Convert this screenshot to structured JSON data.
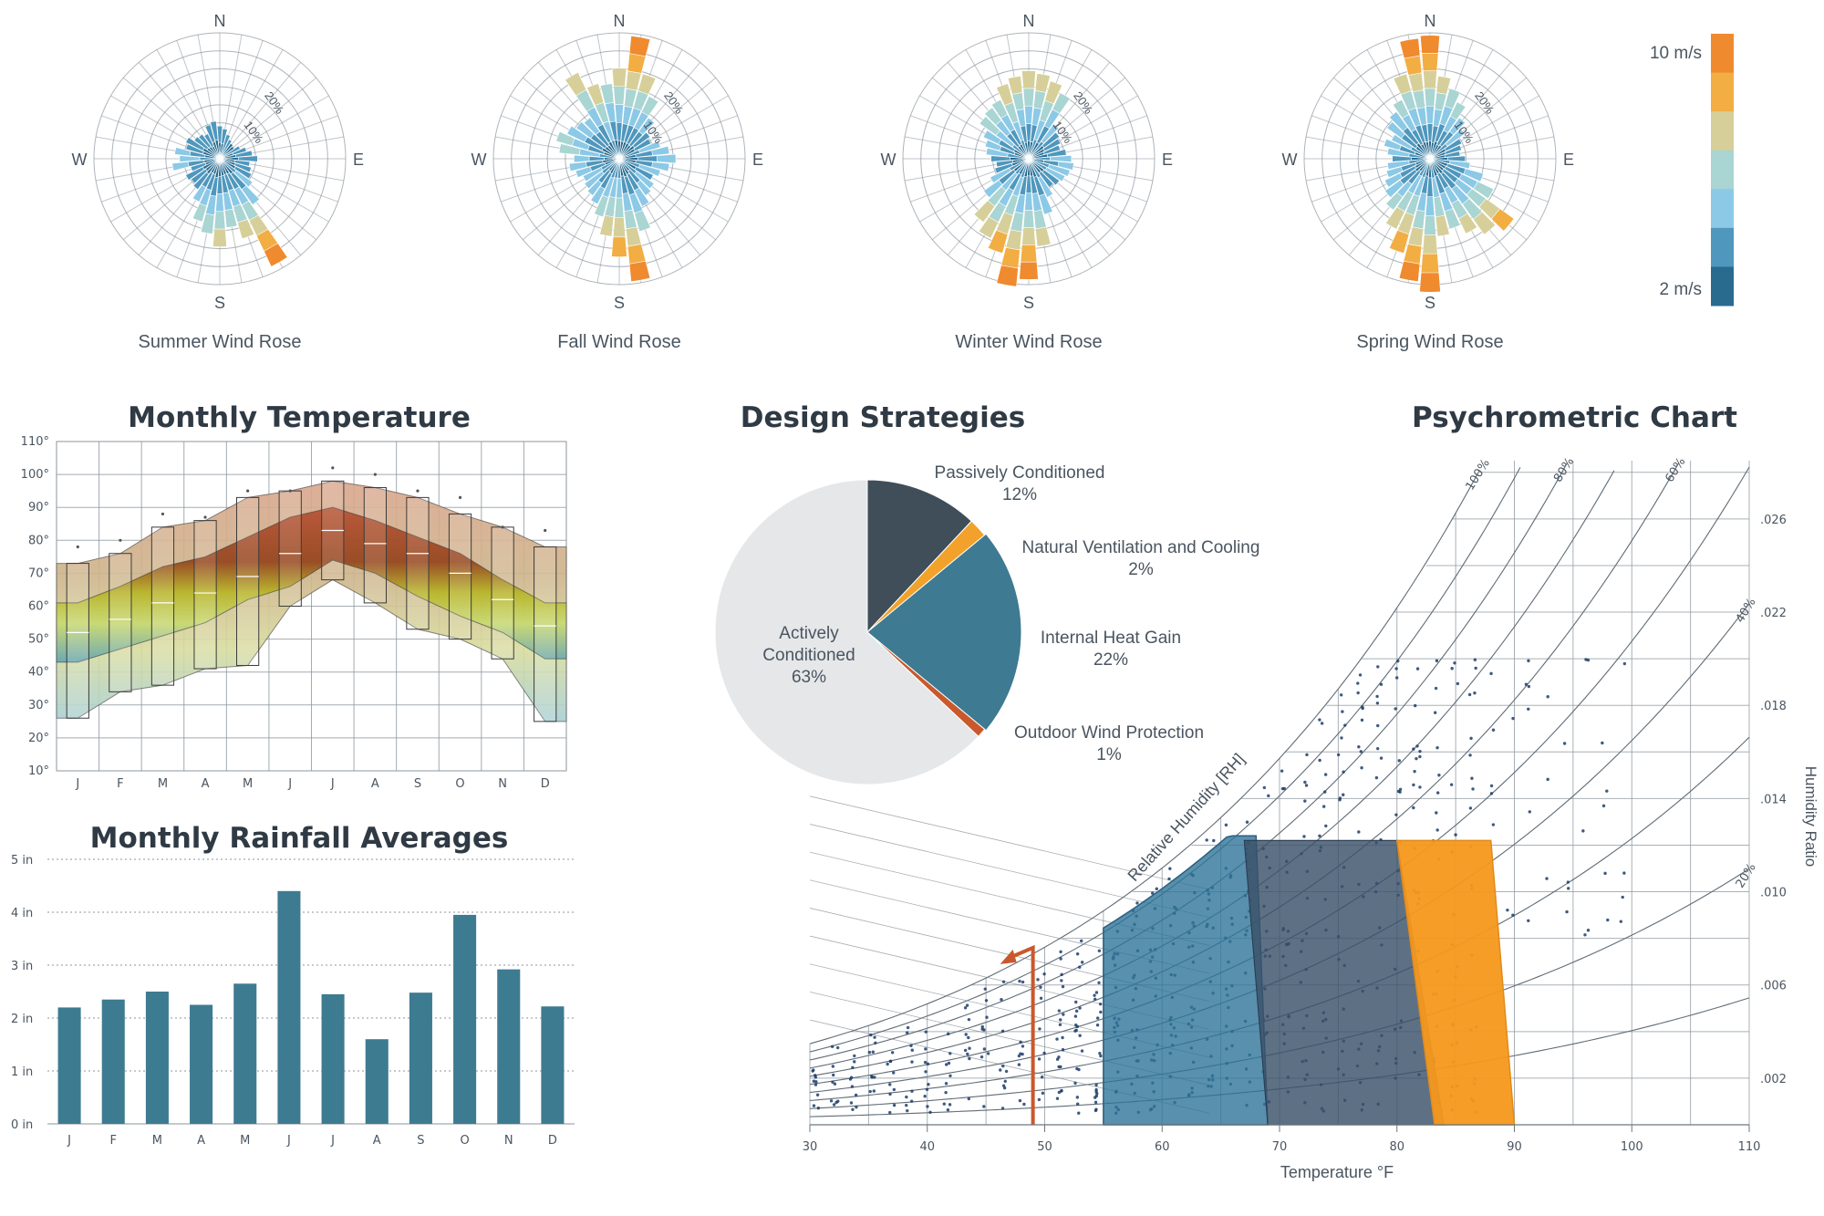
{
  "chart_data": [
    {
      "type": "wind-rose",
      "title": "Summer Wind Rose",
      "directions": [
        "N",
        "E",
        "S",
        "W"
      ],
      "ring_labels": [
        "10%",
        "20%"
      ],
      "petals": [
        {
          "dir": 0,
          "len": 0.26
        },
        {
          "dir": 10,
          "len": 0.24
        },
        {
          "dir": 20,
          "len": 0.2
        },
        {
          "dir": 30,
          "len": 0.17
        },
        {
          "dir": 40,
          "len": 0.15
        },
        {
          "dir": 50,
          "len": 0.14
        },
        {
          "dir": 60,
          "len": 0.18
        },
        {
          "dir": 70,
          "len": 0.22
        },
        {
          "dir": 80,
          "len": 0.26
        },
        {
          "dir": 90,
          "len": 0.3
        },
        {
          "dir": 100,
          "len": 0.24
        },
        {
          "dir": 110,
          "len": 0.26
        },
        {
          "dir": 120,
          "len": 0.28
        },
        {
          "dir": 130,
          "len": 0.32
        },
        {
          "dir": 140,
          "len": 0.45
        },
        {
          "dir": 150,
          "len": 0.95
        },
        {
          "dir": 160,
          "len": 0.66
        },
        {
          "dir": 170,
          "len": 0.55
        },
        {
          "dir": 180,
          "len": 0.7
        },
        {
          "dir": 190,
          "len": 0.6
        },
        {
          "dir": 200,
          "len": 0.52
        },
        {
          "dir": 210,
          "len": 0.38
        },
        {
          "dir": 220,
          "len": 0.3
        },
        {
          "dir": 230,
          "len": 0.28
        },
        {
          "dir": 240,
          "len": 0.3
        },
        {
          "dir": 250,
          "len": 0.24
        },
        {
          "dir": 260,
          "len": 0.38
        },
        {
          "dir": 270,
          "len": 0.32
        },
        {
          "dir": 280,
          "len": 0.36
        },
        {
          "dir": 290,
          "len": 0.28
        },
        {
          "dir": 300,
          "len": 0.3
        },
        {
          "dir": 310,
          "len": 0.25
        },
        {
          "dir": 320,
          "len": 0.24
        },
        {
          "dir": 330,
          "len": 0.22
        },
        {
          "dir": 340,
          "len": 0.28
        },
        {
          "dir": 350,
          "len": 0.3
        }
      ]
    },
    {
      "type": "wind-rose",
      "title": "Fall Wind Rose",
      "directions": [
        "N",
        "E",
        "S",
        "W"
      ],
      "ring_labels": [
        "10%",
        "20%"
      ],
      "petals": [
        {
          "dir": 0,
          "len": 0.72
        },
        {
          "dir": 10,
          "len": 0.98
        },
        {
          "dir": 20,
          "len": 0.7
        },
        {
          "dir": 30,
          "len": 0.55
        },
        {
          "dir": 40,
          "len": 0.4
        },
        {
          "dir": 50,
          "len": 0.3
        },
        {
          "dir": 60,
          "len": 0.28
        },
        {
          "dir": 70,
          "len": 0.34
        },
        {
          "dir": 80,
          "len": 0.4
        },
        {
          "dir": 90,
          "len": 0.45
        },
        {
          "dir": 100,
          "len": 0.4
        },
        {
          "dir": 110,
          "len": 0.34
        },
        {
          "dir": 120,
          "len": 0.3
        },
        {
          "dir": 130,
          "len": 0.34
        },
        {
          "dir": 140,
          "len": 0.36
        },
        {
          "dir": 150,
          "len": 0.42
        },
        {
          "dir": 160,
          "len": 0.6
        },
        {
          "dir": 170,
          "len": 0.98
        },
        {
          "dir": 180,
          "len": 0.78
        },
        {
          "dir": 190,
          "len": 0.62
        },
        {
          "dir": 200,
          "len": 0.48
        },
        {
          "dir": 210,
          "len": 0.4
        },
        {
          "dir": 220,
          "len": 0.36
        },
        {
          "dir": 230,
          "len": 0.34
        },
        {
          "dir": 240,
          "len": 0.32
        },
        {
          "dir": 250,
          "len": 0.36
        },
        {
          "dir": 260,
          "len": 0.4
        },
        {
          "dir": 270,
          "len": 0.36
        },
        {
          "dir": 280,
          "len": 0.48
        },
        {
          "dir": 290,
          "len": 0.52
        },
        {
          "dir": 300,
          "len": 0.46
        },
        {
          "dir": 310,
          "len": 0.42
        },
        {
          "dir": 320,
          "len": 0.4
        },
        {
          "dir": 330,
          "len": 0.76
        },
        {
          "dir": 340,
          "len": 0.62
        },
        {
          "dir": 350,
          "len": 0.6
        }
      ]
    },
    {
      "type": "wind-rose",
      "title": "Winter Wind Rose",
      "directions": [
        "N",
        "E",
        "S",
        "W"
      ],
      "ring_labels": [
        "10%",
        "20%"
      ],
      "petals": [
        {
          "dir": 0,
          "len": 0.7
        },
        {
          "dir": 10,
          "len": 0.68
        },
        {
          "dir": 20,
          "len": 0.64
        },
        {
          "dir": 30,
          "len": 0.58
        },
        {
          "dir": 40,
          "len": 0.34
        },
        {
          "dir": 50,
          "len": 0.3
        },
        {
          "dir": 60,
          "len": 0.28
        },
        {
          "dir": 70,
          "len": 0.26
        },
        {
          "dir": 80,
          "len": 0.3
        },
        {
          "dir": 90,
          "len": 0.34
        },
        {
          "dir": 100,
          "len": 0.36
        },
        {
          "dir": 110,
          "len": 0.34
        },
        {
          "dir": 120,
          "len": 0.32
        },
        {
          "dir": 130,
          "len": 0.3
        },
        {
          "dir": 140,
          "len": 0.28
        },
        {
          "dir": 150,
          "len": 0.34
        },
        {
          "dir": 160,
          "len": 0.46
        },
        {
          "dir": 170,
          "len": 0.7
        },
        {
          "dir": 180,
          "len": 0.96
        },
        {
          "dir": 190,
          "len": 1.02
        },
        {
          "dir": 200,
          "len": 0.78
        },
        {
          "dir": 210,
          "len": 0.7
        },
        {
          "dir": 220,
          "len": 0.62
        },
        {
          "dir": 230,
          "len": 0.44
        },
        {
          "dir": 240,
          "len": 0.34
        },
        {
          "dir": 250,
          "len": 0.28
        },
        {
          "dir": 260,
          "len": 0.26
        },
        {
          "dir": 270,
          "len": 0.3
        },
        {
          "dir": 280,
          "len": 0.34
        },
        {
          "dir": 290,
          "len": 0.36
        },
        {
          "dir": 300,
          "len": 0.4
        },
        {
          "dir": 310,
          "len": 0.48
        },
        {
          "dir": 320,
          "len": 0.5
        },
        {
          "dir": 330,
          "len": 0.52
        },
        {
          "dir": 340,
          "len": 0.62
        },
        {
          "dir": 350,
          "len": 0.66
        }
      ]
    },
    {
      "type": "wind-rose",
      "title": "Spring Wind Rose",
      "directions": [
        "N",
        "E",
        "S",
        "W"
      ],
      "ring_labels": [
        "10%",
        "20%"
      ],
      "petals": [
        {
          "dir": 0,
          "len": 0.98
        },
        {
          "dir": 10,
          "len": 0.66
        },
        {
          "dir": 20,
          "len": 0.58
        },
        {
          "dir": 30,
          "len": 0.5
        },
        {
          "dir": 40,
          "len": 0.4
        },
        {
          "dir": 50,
          "len": 0.34
        },
        {
          "dir": 60,
          "len": 0.28
        },
        {
          "dir": 70,
          "len": 0.26
        },
        {
          "dir": 80,
          "len": 0.24
        },
        {
          "dir": 90,
          "len": 0.28
        },
        {
          "dir": 100,
          "len": 0.32
        },
        {
          "dir": 110,
          "len": 0.44
        },
        {
          "dir": 120,
          "len": 0.56
        },
        {
          "dir": 130,
          "len": 0.82
        },
        {
          "dir": 140,
          "len": 0.74
        },
        {
          "dir": 150,
          "len": 0.66
        },
        {
          "dir": 160,
          "len": 0.58
        },
        {
          "dir": 170,
          "len": 0.62
        },
        {
          "dir": 180,
          "len": 1.06
        },
        {
          "dir": 190,
          "len": 0.98
        },
        {
          "dir": 200,
          "len": 0.78
        },
        {
          "dir": 210,
          "len": 0.62
        },
        {
          "dir": 220,
          "len": 0.5
        },
        {
          "dir": 230,
          "len": 0.44
        },
        {
          "dir": 240,
          "len": 0.4
        },
        {
          "dir": 250,
          "len": 0.36
        },
        {
          "dir": 260,
          "len": 0.34
        },
        {
          "dir": 270,
          "len": 0.3
        },
        {
          "dir": 280,
          "len": 0.34
        },
        {
          "dir": 290,
          "len": 0.38
        },
        {
          "dir": 300,
          "len": 0.34
        },
        {
          "dir": 310,
          "len": 0.42
        },
        {
          "dir": 320,
          "len": 0.46
        },
        {
          "dir": 330,
          "len": 0.52
        },
        {
          "dir": 340,
          "len": 0.7
        },
        {
          "dir": 350,
          "len": 0.96
        }
      ]
    },
    {
      "type": "range-band",
      "title": "Monthly Temperature",
      "categories": [
        "J",
        "F",
        "M",
        "A",
        "M",
        "J",
        "J",
        "A",
        "S",
        "O",
        "N",
        "D"
      ],
      "y_ticks": [
        "10°",
        "20°",
        "30°",
        "40°",
        "50°",
        "60°",
        "70°",
        "80°",
        "90°",
        "100°",
        "110°"
      ],
      "ylim": [
        10,
        110
      ],
      "series": [
        {
          "stat": "record_high",
          "values": [
            78,
            80,
            88,
            87,
            95,
            95,
            102,
            100,
            95,
            93,
            84,
            83
          ]
        },
        {
          "stat": "avg_high",
          "values": [
            73,
            76,
            84,
            86,
            93,
            95,
            98,
            96,
            93,
            88,
            84,
            78
          ]
        },
        {
          "stat": "upper_quartile",
          "values": [
            61,
            66,
            72,
            75,
            81,
            87,
            90,
            86,
            81,
            76,
            68,
            61
          ]
        },
        {
          "stat": "median",
          "values": [
            52,
            56,
            61,
            64,
            69,
            76,
            83,
            79,
            76,
            70,
            62,
            54
          ]
        },
        {
          "stat": "lower_quartile",
          "values": [
            43,
            47,
            51,
            55,
            62,
            66,
            74,
            70,
            63,
            57,
            52,
            44
          ]
        },
        {
          "stat": "avg_low",
          "values": [
            26,
            34,
            36,
            41,
            42,
            60,
            68,
            61,
            53,
            50,
            44,
            25
          ]
        }
      ]
    },
    {
      "type": "pie",
      "title": "Design Strategies",
      "slices": [
        {
          "label": "Passively Conditioned",
          "pct_label": "12%",
          "value": 12,
          "color": "#3f4e59"
        },
        {
          "label": "Natural Ventilation and Cooling",
          "pct_label": "2%",
          "value": 2,
          "color": "#f2a22a"
        },
        {
          "label": "Internal Heat Gain",
          "pct_label": "22%",
          "value": 22,
          "color": "#3e7a92"
        },
        {
          "label": "Outdoor Wind Protection",
          "pct_label": "1%",
          "value": 1,
          "color": "#c9592d"
        },
        {
          "label": "Actively Conditioned",
          "pct_label": "63%",
          "value": 63,
          "color": "#e5e7e9"
        }
      ]
    },
    {
      "type": "bar",
      "title": "Monthly Rainfall Averages",
      "categories": [
        "J",
        "F",
        "M",
        "A",
        "M",
        "J",
        "J",
        "A",
        "S",
        "O",
        "N",
        "D"
      ],
      "values": [
        2.2,
        2.35,
        2.5,
        2.25,
        2.65,
        4.4,
        2.45,
        1.6,
        2.48,
        3.95,
        2.92,
        2.22
      ],
      "y_ticks": [
        "0 in",
        "1 in",
        "2 in",
        "3 in",
        "4 in",
        "5 in"
      ],
      "ylim": [
        0,
        5
      ],
      "color": "#3d7b91"
    },
    {
      "type": "scatter",
      "title": "Psychrometric Chart",
      "xlabel": "Temperature °F",
      "ylabel": "Humidity Ratio",
      "x_ticks": [
        "30",
        "40",
        "50",
        "60",
        "70",
        "80",
        "90",
        "100",
        "110"
      ],
      "y_ticks": [
        ".002",
        ".006",
        ".010",
        ".014",
        ".018",
        ".022",
        ".026"
      ],
      "xlim": [
        30,
        110
      ],
      "ylim": [
        0,
        0.0285
      ],
      "rh_curves": [
        {
          "rh": 100,
          "label": "100%"
        },
        {
          "rh": 90,
          "label": ""
        },
        {
          "rh": 80,
          "label": "80%"
        },
        {
          "rh": 70,
          "label": ""
        },
        {
          "rh": 60,
          "label": "60%"
        },
        {
          "rh": 50,
          "label": ""
        },
        {
          "rh": 40,
          "label": "40%"
        },
        {
          "rh": 30,
          "label": ""
        },
        {
          "rh": 20,
          "label": "20%"
        },
        {
          "rh": 10,
          "label": ""
        }
      ],
      "rh_axis_label": "Relative Humidity [RH]",
      "zones": [
        {
          "name": "blue",
          "color": "#2e7499",
          "t_min": 55,
          "t_max": 68,
          "w_max": 0.0124
        },
        {
          "name": "slate",
          "color": "#3b5069",
          "t_min": 67,
          "t_max": 84,
          "w_max": 0.0122
        },
        {
          "name": "orange",
          "color": "#f5981c",
          "t_min": 80,
          "t_max": 90,
          "w_max": 0.0122
        }
      ],
      "arrow": {
        "x": 49,
        "y_from": 0,
        "y_to": 0.0076
      }
    }
  ],
  "legend": {
    "max_label": "10 m/s",
    "min_label": "2 m/s",
    "colors": [
      "#ef8a2f",
      "#f2ad43",
      "#d7cf99",
      "#a9d5d3",
      "#8cc9e6",
      "#4f97bd",
      "#286b8f"
    ]
  }
}
